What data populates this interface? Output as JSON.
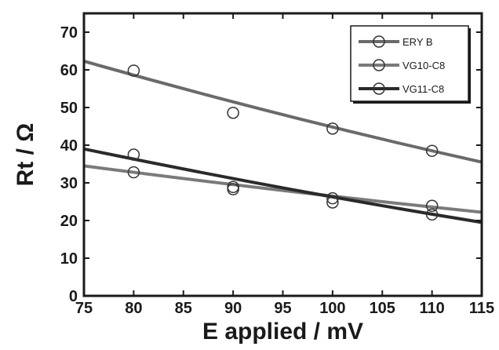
{
  "chart_data": {
    "type": "scatter",
    "title": "",
    "xlabel": "E applied / mV",
    "ylabel": "Rt / Ω",
    "xlim": [
      75,
      115
    ],
    "ylim": [
      0,
      75
    ],
    "xticks": [
      75,
      80,
      85,
      90,
      95,
      100,
      105,
      110,
      115
    ],
    "yticks": [
      0,
      10,
      20,
      30,
      40,
      50,
      60,
      70
    ],
    "grid": false,
    "legend": "top-right",
    "series": [
      {
        "name": "ERY B",
        "color": "#6a6a6a",
        "points": {
          "x": [
            80,
            90,
            100,
            110
          ],
          "y": [
            59.8,
            48.6,
            44.4,
            38.5
          ]
        },
        "fit": {
          "x": [
            75,
            115
          ],
          "y": [
            62.3,
            35.5
          ],
          "curve": "smooth-decreasing"
        }
      },
      {
        "name": "VG10-C8",
        "color": "#7a7a7a",
        "points": {
          "x": [
            80,
            90,
            100,
            110
          ],
          "y": [
            32.8,
            28.9,
            25.9,
            23.9
          ]
        },
        "fit": {
          "x": [
            75,
            115
          ],
          "y": [
            34.5,
            22.2
          ],
          "curve": "smooth-decreasing"
        }
      },
      {
        "name": "VG11-C8",
        "color": "#2a2a2a",
        "points": {
          "x": [
            80,
            90,
            100,
            110
          ],
          "y": [
            37.5,
            28.3,
            24.8,
            21.6
          ]
        },
        "fit": {
          "x": [
            75,
            115
          ],
          "y": [
            39.0,
            19.5
          ],
          "curve": "smooth-decreasing"
        }
      }
    ]
  }
}
